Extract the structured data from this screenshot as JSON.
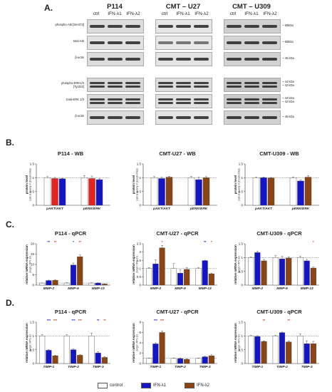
{
  "panel_letters": {
    "a": "A.",
    "b": "B.",
    "c": "C.",
    "d": "D."
  },
  "blot": {
    "columns": [
      {
        "title": "P114",
        "lanes": [
          "ctrl",
          "IFN-λ1",
          "IFN-λ2"
        ]
      },
      {
        "title": "CMT – U27",
        "lanes": [
          "ctrl",
          "IFN-λ1",
          "IFN-λ2"
        ]
      },
      {
        "title": "CMT – U309",
        "lanes": [
          "ctrl",
          "IFN-λ1",
          "IFN-λ2"
        ]
      }
    ],
    "rows": [
      "phospho-Akt [Ser473]",
      "total-Akt",
      "β-actin",
      "phospho-ERK1/2 [Tyr202]",
      "total-ERK 1/2",
      "β-actin"
    ],
    "sizes": [
      "~ 60kDa",
      "~ 60kDa",
      "~ 45 kDa",
      "~ 44 kDa\n~ 42 kDa",
      "~ 44 kDa\n~ 42 kDa",
      "~ 45 kDa"
    ]
  },
  "legend": {
    "control": "control",
    "ifn1": "IFN-λ1",
    "ifn2": "IFN-λ2",
    "colors": {
      "control": "#ffffff",
      "ifn1": "#1515c8",
      "ifn2": "#8b4513",
      "ifn2_alt": "#e8231f"
    }
  },
  "chart_data": [
    {
      "type": "bar",
      "title": "P114 - WB",
      "ylabel": "protein level",
      "ylabel2": "(optical density of phospho/total)",
      "categories": [
        "pAKT/AKT",
        "pERK/ERK"
      ],
      "ylim": [
        0.0,
        1.5
      ],
      "yticks": [
        0.0,
        0.5,
        1.0,
        1.5
      ],
      "series": [
        {
          "name": "control",
          "values": [
            1.0,
            1.0
          ],
          "err": [
            0.04,
            0.08
          ]
        },
        {
          "name": "IFN-λ1",
          "values": [
            0.97,
            0.97
          ],
          "err": [
            0.04,
            0.09
          ],
          "color": "#e8231f"
        },
        {
          "name": "IFN-λ2",
          "values": [
            0.96,
            0.93
          ],
          "err": [
            0.02,
            0.03
          ],
          "color": "#1515c8"
        }
      ]
    },
    {
      "type": "bar",
      "title": "CMT-U27 - WB",
      "ylabel": "protein level",
      "ylabel2": "(optical density of phospho/total)",
      "categories": [
        "pAKT/AKT",
        "pERK/ERK"
      ],
      "ylim": [
        0.0,
        1.5
      ],
      "yticks": [
        0.0,
        0.5,
        1.0,
        1.5
      ],
      "series": [
        {
          "name": "control",
          "values": [
            1.0,
            1.0
          ],
          "err": [
            0.04,
            0.05
          ]
        },
        {
          "name": "IFN-λ1",
          "values": [
            0.97,
            0.93
          ],
          "err": [
            0.05,
            0.09
          ]
        },
        {
          "name": "IFN-λ2",
          "values": [
            1.02,
            1.0
          ],
          "err": [
            0.03,
            0.04
          ]
        }
      ]
    },
    {
      "type": "bar",
      "title": "CMT-U309 - WB",
      "ylabel": "protein level",
      "ylabel2": "(optical density of phospho/total)",
      "categories": [
        "pAKT/AKT",
        "pERK/ERK"
      ],
      "ylim": [
        0.0,
        1.5
      ],
      "yticks": [
        0.0,
        0.5,
        1.0,
        1.5
      ],
      "series": [
        {
          "name": "control",
          "values": [
            1.0,
            1.0
          ],
          "err": [
            0.02,
            0.03
          ]
        },
        {
          "name": "IFN-λ1",
          "values": [
            1.0,
            0.88
          ],
          "err": [
            0.02,
            0.04
          ]
        },
        {
          "name": "IFN-λ2",
          "values": [
            0.99,
            1.02
          ],
          "err": [
            0.02,
            0.06
          ]
        }
      ]
    },
    {
      "type": "bar",
      "title": "P114 - qPCR",
      "ylabel": "relative mRNA expression",
      "ylabel2": "(target / RPS 19)",
      "categories": [
        "MMP-2",
        "MMP-9",
        "MMP-13"
      ],
      "ylim": [
        0,
        20
      ],
      "yticks": [
        0,
        5,
        10,
        15,
        20
      ],
      "series": [
        {
          "name": "control",
          "values": [
            1.0,
            1.0,
            1.0
          ],
          "err": [
            0.05,
            0.2,
            0.1
          ]
        },
        {
          "name": "IFN-λ1",
          "values": [
            2.2,
            9.7,
            1.0
          ],
          "err": [
            0.2,
            1.0,
            0.1
          ]
        },
        {
          "name": "IFN-λ2",
          "values": [
            2.3,
            13.7,
            0.5
          ],
          "err": [
            0.2,
            0.9,
            0.1
          ]
        }
      ],
      "annotations": [
        [
          "**",
          "**"
        ],
        [
          "*",
          "**"
        ],
        [
          "",
          ""
        ]
      ]
    },
    {
      "type": "bar",
      "title": "CMT-U27 - qPCR",
      "ylabel": "relative mRNA expression",
      "ylabel2": "(target / RPS 19)",
      "categories": [
        "MMP-2",
        "MMP-9",
        "MMP-13"
      ],
      "ylim": [
        0.0,
        2.5
      ],
      "yticks": [
        0.0,
        0.5,
        1.0,
        1.5,
        2.0,
        2.5
      ],
      "series": [
        {
          "name": "control",
          "values": [
            1.0,
            1.0,
            1.0
          ],
          "err": [
            0.05,
            0.3,
            0.05
          ]
        },
        {
          "name": "IFN-λ1",
          "values": [
            1.28,
            0.72,
            1.48
          ],
          "err": [
            0.25,
            0.2,
            0.02
          ]
        },
        {
          "name": "IFN-λ2",
          "values": [
            2.25,
            0.95,
            0.68
          ],
          "err": [
            0.15,
            0.1,
            0.04
          ]
        }
      ],
      "annotations": [
        [
          "",
          "*"
        ],
        [
          "",
          ""
        ],
        [
          "**",
          "*"
        ]
      ]
    },
    {
      "type": "bar",
      "title": "CMT-U309 - qPCR",
      "ylabel": "relative mRNA expression",
      "ylabel2": "(target / RPS 19)",
      "categories": [
        "MMP-2",
        "MMP-9",
        "MMP-13"
      ],
      "ylim": [
        0.0,
        1.5
      ],
      "yticks": [
        0.0,
        0.5,
        1.0,
        1.5
      ],
      "series": [
        {
          "name": "control",
          "values": [
            1.0,
            1.0,
            1.0
          ],
          "err": [
            0.02,
            0.07,
            0.05
          ]
        },
        {
          "name": "IFN-λ1",
          "values": [
            1.18,
            0.95,
            0.88
          ],
          "err": [
            0.05,
            0.1,
            0.05
          ]
        },
        {
          "name": "IFN-λ2",
          "values": [
            0.88,
            0.98,
            0.62
          ],
          "err": [
            0.05,
            0.05,
            0.04
          ]
        }
      ],
      "annotations": [
        [
          "",
          ""
        ],
        [
          "",
          ""
        ],
        [
          "",
          "*"
        ]
      ]
    },
    {
      "type": "bar",
      "title": "P114 - qPCR",
      "ylabel": "relative mRNA expression",
      "ylabel2": "(target / RPS 19)",
      "categories": [
        "TIMP-1",
        "TIMP-2",
        "TIMP-3"
      ],
      "ylim": [
        0.0,
        1.5
      ],
      "yticks": [
        0.0,
        0.5,
        1.0,
        1.5
      ],
      "series": [
        {
          "name": "control",
          "values": [
            1.0,
            1.0,
            1.0
          ],
          "err": [
            0.05,
            0.05,
            0.1
          ]
        },
        {
          "name": "IFN-λ1",
          "values": [
            0.48,
            0.5,
            0.38
          ],
          "err": [
            0.02,
            0.03,
            0.04
          ]
        },
        {
          "name": "IFN-λ2",
          "values": [
            0.28,
            0.3,
            0.22
          ],
          "err": [
            0.02,
            0.02,
            0.03
          ]
        }
      ],
      "annotations": [
        [
          "***",
          "***"
        ],
        [
          "***",
          "***"
        ],
        [
          "**",
          "**"
        ]
      ]
    },
    {
      "type": "bar",
      "title": "CMT-U27 - qPCR",
      "ylabel": "relative mRNA expression",
      "ylabel2": "(target / RPS 19)",
      "categories": [
        "TIMP-1",
        "TIMP-2",
        "TIMP-3"
      ],
      "ylim": [
        0,
        8
      ],
      "yticks": [
        0,
        2,
        4,
        6,
        8
      ],
      "series": [
        {
          "name": "control",
          "values": [
            1.0,
            1.0,
            1.0
          ],
          "err": [
            0.05,
            0.05,
            0.05
          ]
        },
        {
          "name": "IFN-λ1",
          "values": [
            3.8,
            0.95,
            1.3
          ],
          "err": [
            0.2,
            0.1,
            0.1
          ]
        },
        {
          "name": "IFN-λ2",
          "values": [
            6.0,
            0.8,
            1.5
          ],
          "err": [
            0.3,
            0.1,
            0.2
          ]
        }
      ],
      "annotations": [
        [
          "***",
          "***"
        ],
        [
          "",
          ""
        ],
        [
          "",
          ""
        ]
      ]
    },
    {
      "type": "bar",
      "title": "CMT-U309 - qPCR",
      "ylabel": "relative mRNA expression",
      "ylabel2": "(target / RPS 19)",
      "categories": [
        "TIMP-1",
        "TIMP-2",
        "TIMP-3"
      ],
      "ylim": [
        0.0,
        1.5
      ],
      "yticks": [
        0.0,
        0.5,
        1.0,
        1.5
      ],
      "series": [
        {
          "name": "control",
          "values": [
            1.0,
            1.0,
            1.0
          ],
          "err": [
            0.03,
            0.02,
            0.08
          ]
        },
        {
          "name": "IFN-λ1",
          "values": [
            0.98,
            1.12,
            0.72
          ],
          "err": [
            0.03,
            0.02,
            0.1
          ]
        },
        {
          "name": "IFN-λ2",
          "values": [
            0.8,
            0.78,
            0.72
          ],
          "err": [
            0.02,
            0.04,
            0.08
          ]
        }
      ],
      "annotations": [
        [
          "",
          "**"
        ],
        [
          "",
          "**"
        ],
        [
          "",
          ""
        ]
      ]
    }
  ]
}
